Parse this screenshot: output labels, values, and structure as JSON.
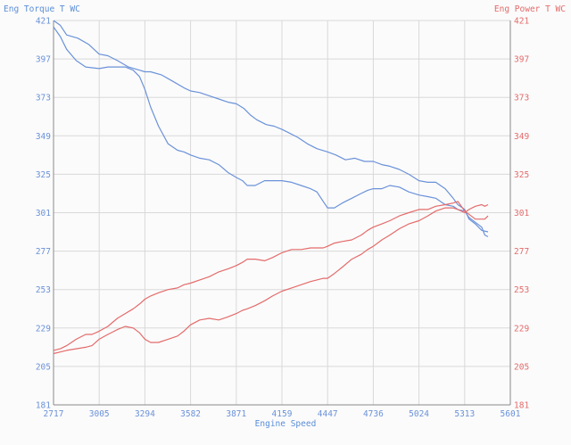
{
  "chart_data": {
    "type": "line",
    "left_axis_title": "Eng Torque T WC",
    "right_axis_title": "Eng Power T WC",
    "xlabel": "Engine Speed",
    "xlim": [
      2717,
      5601
    ],
    "ylim": [
      181,
      421
    ],
    "x_ticks": [
      "2717",
      "3005",
      "3294",
      "3582",
      "3871",
      "4159",
      "4447",
      "4736",
      "5024",
      "5313",
      "5601"
    ],
    "y_ticks_left": [
      "421",
      "397",
      "373",
      "349",
      "325",
      "301",
      "277",
      "253",
      "229",
      "205",
      "181"
    ],
    "y_ticks_right": [
      "421",
      "397",
      "373",
      "349",
      "325",
      "301",
      "277",
      "253",
      "229",
      "205",
      "181"
    ],
    "grid": true,
    "colors": {
      "torque": "#6b92d9",
      "power": "#e46b6b",
      "grid": "#d9d9d9",
      "axis": "#8a8a8a"
    },
    "series": [
      {
        "axis": "left",
        "color": "#6b92d9",
        "x": [
          2717,
          2760,
          2800,
          2870,
          2940,
          3005,
          3060,
          3120,
          3190,
          3260,
          3294,
          3330,
          3400,
          3470,
          3540,
          3582,
          3640,
          3700,
          3760,
          3820,
          3871,
          3920,
          3960,
          4000,
          4060,
          4110,
          4159,
          4200,
          4260,
          4320,
          4380,
          4447,
          4500,
          4560,
          4620,
          4680,
          4736,
          4790,
          4840,
          4900,
          4960,
          5024,
          5080,
          5130,
          5190,
          5240,
          5270,
          5313,
          5340,
          5380,
          5420,
          5460
        ],
        "y": [
          421,
          418,
          412,
          410,
          406,
          400,
          399,
          396,
          392,
          390,
          389,
          389,
          387,
          383,
          379,
          377,
          376,
          374,
          372,
          370,
          369,
          366,
          362,
          359,
          356,
          355,
          353,
          351,
          348,
          344,
          341,
          339,
          337,
          334,
          335,
          333,
          333,
          331,
          330,
          328,
          325,
          321,
          320,
          320,
          316,
          310,
          306,
          303,
          297,
          294,
          290,
          289
        ]
      },
      {
        "axis": "left",
        "color": "#6b92d9",
        "x": [
          2717,
          2760,
          2800,
          2860,
          2920,
          3005,
          3060,
          3120,
          3170,
          3220,
          3260,
          3294,
          3330,
          3380,
          3440,
          3500,
          3540,
          3582,
          3640,
          3700,
          3760,
          3820,
          3871,
          3910,
          3940,
          3990,
          4050,
          4100,
          4159,
          4220,
          4280,
          4340,
          4380,
          4420,
          4447,
          4490,
          4540,
          4600,
          4660,
          4700,
          4736,
          4790,
          4840,
          4900,
          4960,
          5024,
          5080,
          5130,
          5190,
          5240,
          5270,
          5313,
          5340,
          5380,
          5420,
          5440,
          5460
        ],
        "y": [
          417,
          411,
          403,
          396,
          392,
          391,
          392,
          392,
          392,
          390,
          386,
          378,
          367,
          355,
          344,
          340,
          339,
          337,
          335,
          334,
          331,
          326,
          323,
          321,
          318,
          318,
          321,
          321,
          321,
          320,
          318,
          316,
          314,
          308,
          304,
          304,
          307,
          310,
          313,
          315,
          316,
          316,
          318,
          317,
          314,
          312,
          311,
          310,
          306,
          305,
          303,
          302,
          298,
          295,
          292,
          287,
          286
        ]
      },
      {
        "axis": "right",
        "color": "#e46b6b",
        "x": [
          2717,
          2760,
          2800,
          2860,
          2920,
          2960,
          3005,
          3060,
          3120,
          3170,
          3220,
          3260,
          3294,
          3330,
          3380,
          3440,
          3500,
          3540,
          3582,
          3640,
          3700,
          3760,
          3820,
          3871,
          3910,
          3940,
          3990,
          4050,
          4100,
          4159,
          4220,
          4280,
          4340,
          4380,
          4420,
          4447,
          4490,
          4540,
          4600,
          4660,
          4700,
          4736,
          4790,
          4840,
          4900,
          4960,
          5024,
          5080,
          5130,
          5190,
          5240,
          5270,
          5313,
          5340,
          5380,
          5420,
          5440,
          5460
        ],
        "y": [
          215,
          216,
          218,
          222,
          225,
          225,
          227,
          230,
          235,
          238,
          241,
          244,
          247,
          249,
          251,
          253,
          254,
          256,
          257,
          259,
          261,
          264,
          266,
          268,
          270,
          272,
          272,
          271,
          273,
          276,
          278,
          278,
          279,
          279,
          279,
          280,
          282,
          283,
          284,
          287,
          290,
          292,
          294,
          296,
          299,
          301,
          303,
          303,
          305,
          306,
          307,
          308,
          302,
          300,
          297,
          297,
          297,
          299
        ]
      },
      {
        "axis": "right",
        "color": "#e46b6b",
        "x": [
          2717,
          2760,
          2800,
          2860,
          2920,
          2960,
          3005,
          3060,
          3120,
          3170,
          3220,
          3260,
          3294,
          3330,
          3380,
          3440,
          3500,
          3540,
          3582,
          3640,
          3700,
          3760,
          3820,
          3871,
          3910,
          3940,
          3990,
          4050,
          4100,
          4159,
          4220,
          4280,
          4340,
          4380,
          4420,
          4447,
          4490,
          4540,
          4600,
          4660,
          4700,
          4736,
          4790,
          4840,
          4900,
          4960,
          5024,
          5080,
          5130,
          5190,
          5240,
          5270,
          5313,
          5340,
          5380,
          5420,
          5440,
          5460
        ],
        "y": [
          213,
          214,
          215,
          216,
          217,
          218,
          222,
          225,
          228,
          230,
          229,
          226,
          222,
          220,
          220,
          222,
          224,
          227,
          231,
          234,
          235,
          234,
          236,
          238,
          240,
          241,
          243,
          246,
          249,
          252,
          254,
          256,
          258,
          259,
          260,
          260,
          263,
          267,
          272,
          275,
          278,
          280,
          284,
          287,
          291,
          294,
          296,
          299,
          302,
          304,
          304,
          303,
          301,
          303,
          305,
          306,
          305,
          306
        ]
      }
    ]
  }
}
